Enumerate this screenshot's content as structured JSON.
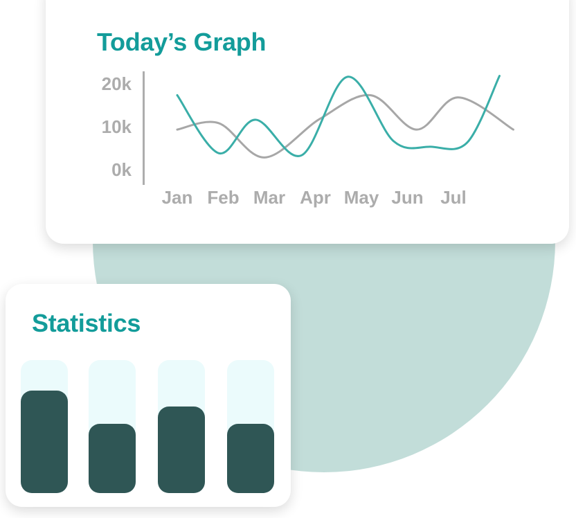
{
  "graph_card": {
    "title": "Today’s Graph"
  },
  "stats_card": {
    "title": "Statistics"
  },
  "colors": {
    "title": "#139c9a",
    "teal_series": "#3aaea8",
    "gray_series": "#a7a7a7",
    "background_circle": "#c2ddd9",
    "bar_fill": "#2f5655",
    "bar_track": "#ebfbfc"
  },
  "chart_data": [
    {
      "type": "line",
      "title": "Today’s Graph",
      "x_ticks": [
        "Jan",
        "Feb",
        "Mar",
        "Apr",
        "May",
        "Jun",
        "Jul"
      ],
      "y_ticks": [
        "20k",
        "10k",
        "0k"
      ],
      "ylim": [
        0,
        20000
      ],
      "y_axis_line": true,
      "legend": "none",
      "grid": false,
      "series": [
        {
          "color": "#3aaea8",
          "points": [
            {
              "x": 0.0,
              "y": 17500
            },
            {
              "x": 0.9,
              "y": 4000
            },
            {
              "x": 1.7,
              "y": 11800
            },
            {
              "x": 2.7,
              "y": 3500
            },
            {
              "x": 3.7,
              "y": 21800
            },
            {
              "x": 4.7,
              "y": 6800
            },
            {
              "x": 5.5,
              "y": 5500
            },
            {
              "x": 6.3,
              "y": 6500
            },
            {
              "x": 7.0,
              "y": 22000
            }
          ]
        },
        {
          "color": "#a7a7a7",
          "points": [
            {
              "x": 0.0,
              "y": 9500
            },
            {
              "x": 0.9,
              "y": 11000
            },
            {
              "x": 1.9,
              "y": 3000
            },
            {
              "x": 3.1,
              "y": 12000
            },
            {
              "x": 4.2,
              "y": 17500
            },
            {
              "x": 5.2,
              "y": 9500
            },
            {
              "x": 6.1,
              "y": 17000
            },
            {
              "x": 7.3,
              "y": 9500
            }
          ]
        }
      ]
    },
    {
      "type": "bar",
      "title": "Statistics",
      "categories": [
        "",
        "",
        "",
        ""
      ],
      "values": [
        0.77,
        0.52,
        0.65,
        0.52
      ],
      "ylim": [
        0,
        1
      ],
      "legend": "none",
      "grid": false
    }
  ]
}
